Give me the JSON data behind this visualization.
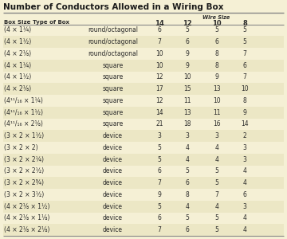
{
  "title": "Number of Conductors Allowed in a Wiring Box",
  "rows": [
    [
      "(4 × 1¼)",
      "round/octagonal",
      "6",
      "5",
      "5",
      "5"
    ],
    [
      "(4 × 1½)",
      "round/octagonal",
      "7",
      "6",
      "6",
      "5"
    ],
    [
      "(4 × 2⅛)",
      "round/octagonal",
      "10",
      "9",
      "8",
      "7"
    ],
    [
      "(4 × 1¼)",
      "square",
      "10",
      "9",
      "8",
      "6"
    ],
    [
      "(4 × 1½)",
      "square",
      "12",
      "10",
      "9",
      "7"
    ],
    [
      "(4 × 2⅛)",
      "square",
      "17",
      "15",
      "13",
      "10"
    ],
    [
      "(4¹¹/₁₆ × 1¼)",
      "square",
      "12",
      "11",
      "10",
      "8"
    ],
    [
      "(4¹¹/₁₆ × 1½)",
      "square",
      "14",
      "13",
      "11",
      "9"
    ],
    [
      "(4¹¹/₁₆ × 2⅛)",
      "square",
      "21",
      "18",
      "16",
      "14"
    ],
    [
      "(3 × 2 × 1½)",
      "device",
      "3",
      "3",
      "3",
      "2"
    ],
    [
      "(3 × 2 × 2)",
      "device",
      "5",
      "4",
      "4",
      "3"
    ],
    [
      "(3 × 2 × 2¼)",
      "device",
      "5",
      "4",
      "4",
      "3"
    ],
    [
      "(3 × 2 × 2½)",
      "device",
      "6",
      "5",
      "5",
      "4"
    ],
    [
      "(3 × 2 × 2¾)",
      "device",
      "7",
      "6",
      "5",
      "4"
    ],
    [
      "(3 × 2 × 3½)",
      "device",
      "9",
      "8",
      "7",
      "6"
    ],
    [
      "(4 × 2⅛ × 1½)",
      "device",
      "5",
      "4",
      "4",
      "3"
    ],
    [
      "(4 × 2⅛ × 1⅛)",
      "device",
      "6",
      "5",
      "5",
      "4"
    ],
    [
      "(4 × 2⅛ × 2⅛)",
      "device",
      "7",
      "6",
      "5",
      "4"
    ]
  ],
  "bg_color": "#f5f0d5",
  "alt_row_color": "#ece7c5",
  "title_color": "#1a1a1a",
  "text_color": "#2a2a2a",
  "line_color": "#888888",
  "title_fontsize": 7.5,
  "header_fontsize": 5.0,
  "cell_fontsize": 5.5,
  "wire_size_label": "Wire Size",
  "col0_header": "Box Size",
  "col1_header": "Type of Box",
  "num_headers": [
    "14",
    "12",
    "10",
    "8"
  ]
}
